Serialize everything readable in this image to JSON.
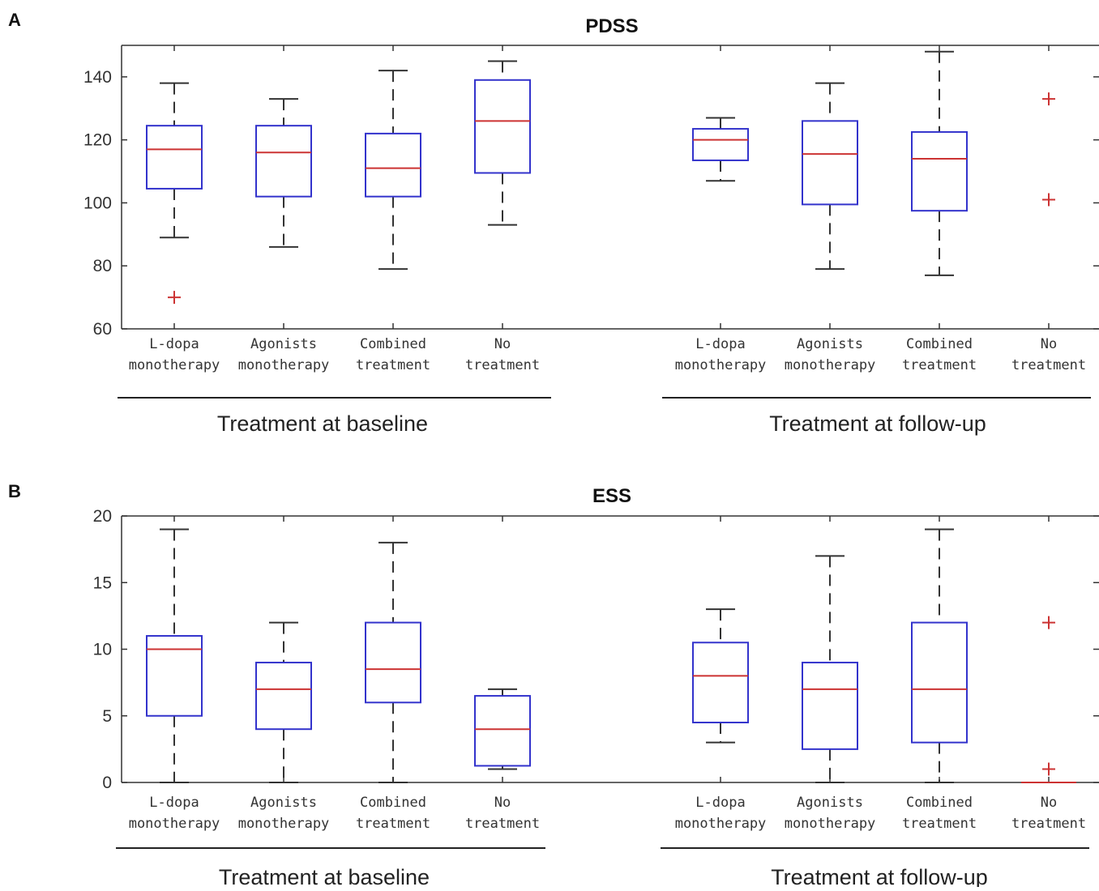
{
  "chart_data": [
    {
      "type": "box",
      "panel": "A",
      "title": "PDSS",
      "ylim": [
        60,
        150
      ],
      "yticks": [
        60,
        80,
        100,
        120,
        140
      ],
      "groups": [
        {
          "label": "Treatment at baseline",
          "categories": [
            [
              "L-dopa",
              "monotherapy"
            ],
            [
              "Agonists",
              "monotherapy"
            ],
            [
              "Combined",
              "treatment"
            ],
            [
              "No",
              "treatment"
            ]
          ],
          "boxes": [
            {
              "whisker_low": 89,
              "q1": 104.5,
              "median": 117,
              "q3": 124.5,
              "whisker_high": 138,
              "outliers": [
                70
              ]
            },
            {
              "whisker_low": 86,
              "q1": 102,
              "median": 116,
              "q3": 124.5,
              "whisker_high": 133,
              "outliers": []
            },
            {
              "whisker_low": 79,
              "q1": 102,
              "median": 111,
              "q3": 122,
              "whisker_high": 142,
              "outliers": []
            },
            {
              "whisker_low": 93,
              "q1": 109.5,
              "median": 126,
              "q3": 139,
              "whisker_high": 145,
              "outliers": []
            }
          ]
        },
        {
          "label": "Treatment at follow-up",
          "categories": [
            [
              "L-dopa",
              "monotherapy"
            ],
            [
              "Agonists",
              "monotherapy"
            ],
            [
              "Combined",
              "treatment"
            ],
            [
              "No",
              "treatment"
            ]
          ],
          "boxes": [
            {
              "whisker_low": 107,
              "q1": 113.5,
              "median": 120,
              "q3": 123.5,
              "whisker_high": 127,
              "outliers": []
            },
            {
              "whisker_low": 79,
              "q1": 99.5,
              "median": 115.5,
              "q3": 126,
              "whisker_high": 138,
              "outliers": []
            },
            {
              "whisker_low": 77,
              "q1": 97.5,
              "median": 114,
              "q3": 122.5,
              "whisker_high": 148,
              "outliers": []
            },
            {
              "whisker_low": null,
              "q1": null,
              "median": null,
              "q3": null,
              "whisker_high": null,
              "outliers": [
                133,
                101
              ]
            }
          ]
        }
      ]
    },
    {
      "type": "box",
      "panel": "B",
      "title": "ESS",
      "ylim": [
        0,
        20
      ],
      "yticks": [
        0,
        5,
        10,
        15,
        20
      ],
      "groups": [
        {
          "label": "Treatment at baseline",
          "categories": [
            [
              "L-dopa",
              "monotherapy"
            ],
            [
              "Agonists",
              "monotherapy"
            ],
            [
              "Combined",
              "treatment"
            ],
            [
              "No",
              "treatment"
            ]
          ],
          "boxes": [
            {
              "whisker_low": 0,
              "q1": 5,
              "median": 10,
              "q3": 11,
              "whisker_high": 19,
              "outliers": []
            },
            {
              "whisker_low": 0,
              "q1": 4,
              "median": 7,
              "q3": 9,
              "whisker_high": 12,
              "outliers": []
            },
            {
              "whisker_low": 0,
              "q1": 6,
              "median": 8.5,
              "q3": 12,
              "whisker_high": 18,
              "outliers": []
            },
            {
              "whisker_low": 1,
              "q1": 1.25,
              "median": 4,
              "q3": 6.5,
              "whisker_high": 7,
              "outliers": []
            }
          ]
        },
        {
          "label": "Treatment at follow-up",
          "categories": [
            [
              "L-dopa",
              "monotherapy"
            ],
            [
              "Agonists",
              "monotherapy"
            ],
            [
              "Combined",
              "treatment"
            ],
            [
              "No",
              "treatment"
            ]
          ],
          "boxes": [
            {
              "whisker_low": 3,
              "q1": 4.5,
              "median": 8,
              "q3": 10.5,
              "whisker_high": 13,
              "outliers": []
            },
            {
              "whisker_low": 0,
              "q1": 2.5,
              "median": 7,
              "q3": 9,
              "whisker_high": 17,
              "outliers": []
            },
            {
              "whisker_low": 0,
              "q1": 3,
              "median": 7,
              "q3": 12,
              "whisker_high": 19,
              "outliers": []
            },
            {
              "whisker_low": 0,
              "q1": 0,
              "median": 0,
              "q3": 0,
              "whisker_high": 0,
              "outliers": [
                12,
                1
              ]
            }
          ]
        }
      ]
    }
  ],
  "colors": {
    "box": "#3333cc",
    "median": "#cc3333",
    "whisker": "#333333",
    "outlier": "#cc3333",
    "axis": "#333333"
  }
}
